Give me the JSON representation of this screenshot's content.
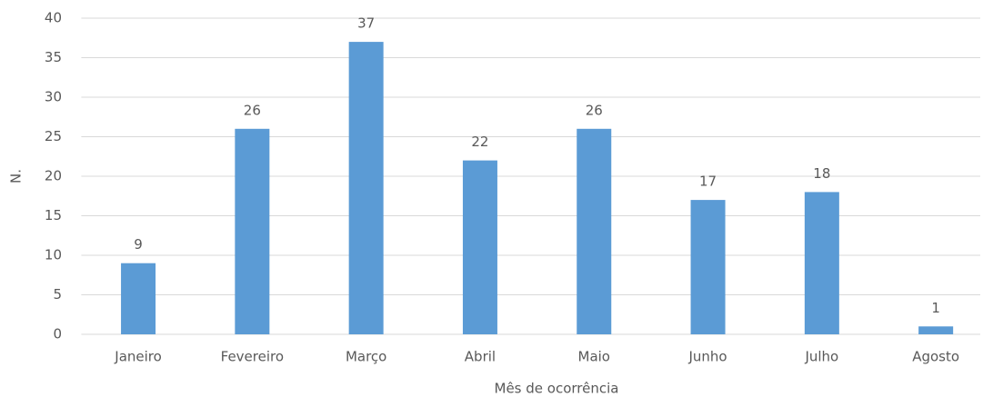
{
  "chart_data": {
    "type": "bar",
    "categories": [
      "Janeiro",
      "Fevereiro",
      "Março",
      "Abril",
      "Maio",
      "Junho",
      "Julho",
      "Agosto"
    ],
    "values": [
      9,
      26,
      37,
      22,
      26,
      17,
      18,
      1
    ],
    "color": "#5b9bd5",
    "ylim": [
      0,
      40
    ],
    "yticks": [
      0,
      5,
      10,
      15,
      20,
      25,
      30,
      35,
      40
    ],
    "grid": true,
    "ylabel": "N.",
    "xlabel": "Mês de ocorrência"
  }
}
